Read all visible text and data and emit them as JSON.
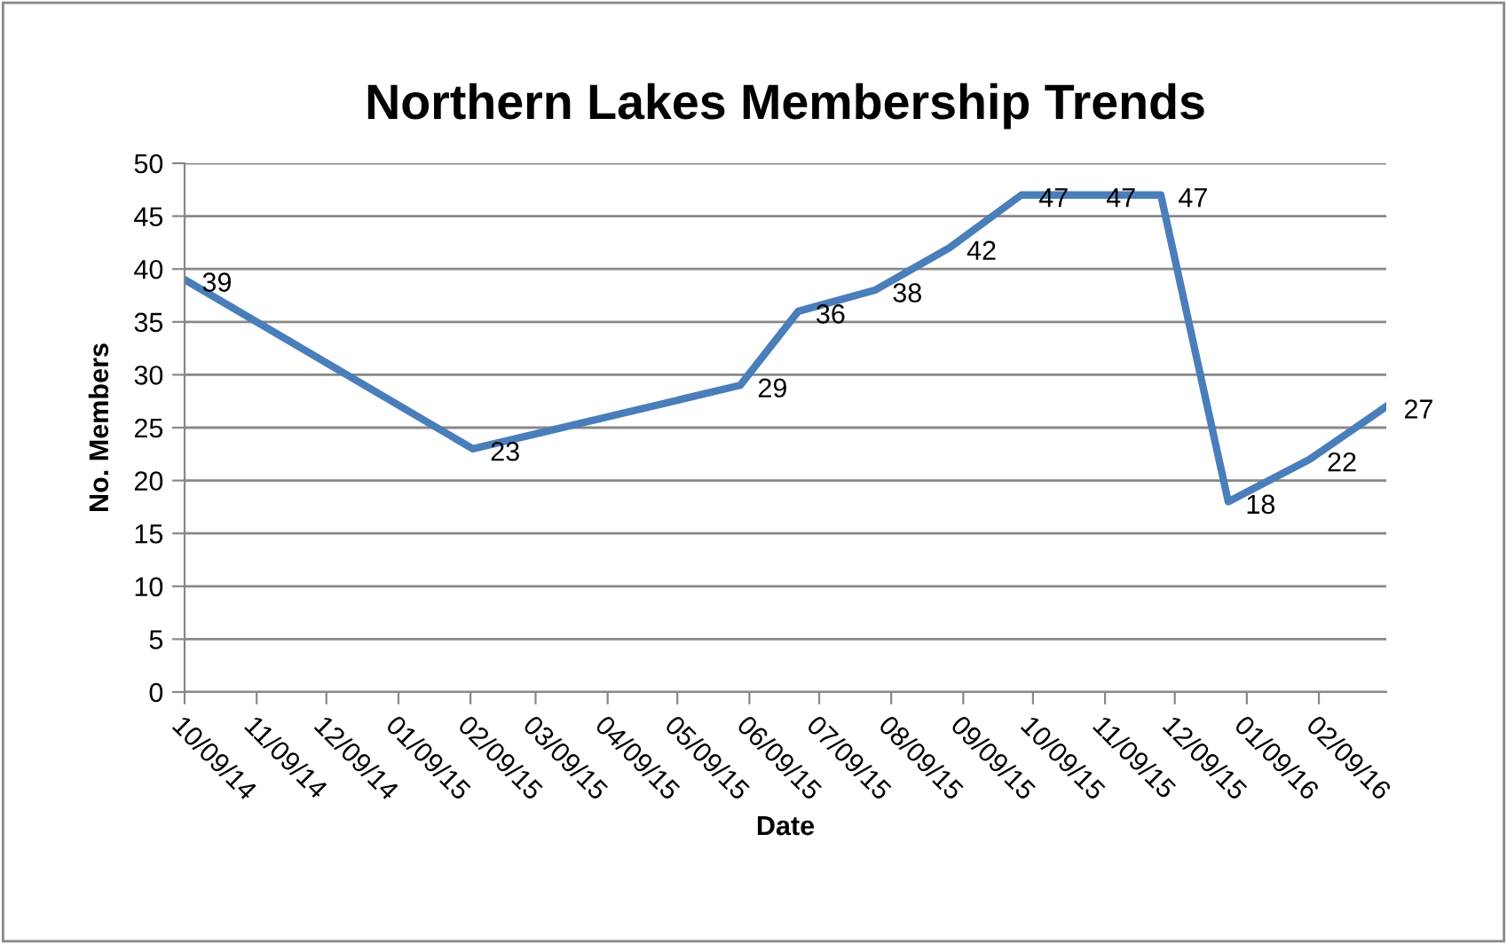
{
  "chart_data": {
    "type": "line",
    "title": "Northern Lakes Membership Trends",
    "xlabel": "Date",
    "ylabel": "No. Members",
    "x": [
      "2014-10-09",
      "2015-02-10",
      "2015-06-05",
      "2015-06-30",
      "2015-08-02",
      "2015-09-03",
      "2015-10-04",
      "2015-11-02",
      "2015-12-03",
      "2016-01-01",
      "2016-02-05",
      "2016-03-09"
    ],
    "series": [
      {
        "color": "#4a7ebb",
        "values": [
          39,
          23,
          29,
          36,
          38,
          42,
          47,
          47,
          47,
          18,
          22,
          27
        ]
      }
    ],
    "xlim": [
      "2014-10-09",
      "2016-03-09"
    ],
    "xticks": [
      {
        "value": "2014-10-09",
        "label": "10/09/14"
      },
      {
        "value": "2014-11-09",
        "label": "11/09/14"
      },
      {
        "value": "2014-12-09",
        "label": "12/09/14"
      },
      {
        "value": "2015-01-09",
        "label": "01/09/15"
      },
      {
        "value": "2015-02-09",
        "label": "02/09/15"
      },
      {
        "value": "2015-03-09",
        "label": "03/09/15"
      },
      {
        "value": "2015-04-09",
        "label": "04/09/15"
      },
      {
        "value": "2015-05-09",
        "label": "05/09/15"
      },
      {
        "value": "2015-06-09",
        "label": "06/09/15"
      },
      {
        "value": "2015-07-09",
        "label": "07/09/15"
      },
      {
        "value": "2015-08-09",
        "label": "08/09/15"
      },
      {
        "value": "2015-09-09",
        "label": "09/09/15"
      },
      {
        "value": "2015-10-09",
        "label": "10/09/15"
      },
      {
        "value": "2015-11-09",
        "label": "11/09/15"
      },
      {
        "value": "2015-12-09",
        "label": "12/09/15"
      },
      {
        "value": "2016-01-09",
        "label": "01/09/16"
      },
      {
        "value": "2016-02-09",
        "label": "02/09/16"
      }
    ],
    "ylim": [
      0,
      50
    ],
    "yticks": [
      0,
      5,
      10,
      15,
      20,
      25,
      30,
      35,
      40,
      45,
      50
    ],
    "grid": "y",
    "legend": false,
    "marker": "none",
    "line_style": "solid",
    "data_labels": true
  }
}
